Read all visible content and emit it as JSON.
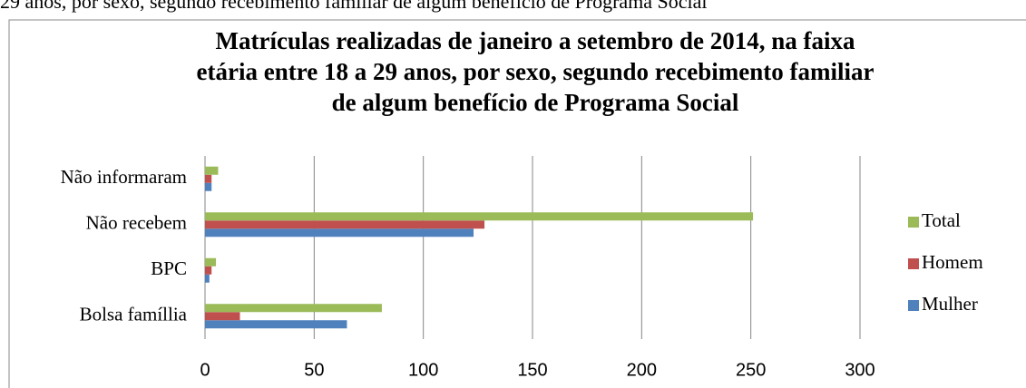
{
  "caption": "29 anos, por sexo, segundo recebimento familiar de algum benefício de Programa Social",
  "chart_data": {
    "type": "hbar",
    "title": [
      "Matrículas realizadas de janeiro a setembro de 2014, na faixa",
      "etária entre 18 a 29 anos, por sexo, segundo recebimento familiar",
      "de algum benefício de Programa Social"
    ],
    "categories": [
      "Bolsa famíllia",
      "BPC",
      "Não recebem",
      "Não informaram"
    ],
    "series": [
      {
        "name": "Mulher",
        "color": "#4f81bd",
        "values": [
          65,
          2,
          123,
          3
        ]
      },
      {
        "name": "Homem",
        "color": "#c0504d",
        "values": [
          16,
          3,
          128,
          3
        ]
      },
      {
        "name": "Total",
        "color": "#9bbb59",
        "values": [
          81,
          5,
          251,
          6
        ]
      }
    ],
    "xlim": [
      0,
      300
    ],
    "xticks": [
      0,
      50,
      100,
      150,
      200,
      250,
      300
    ],
    "grid": true,
    "legend": "right"
  }
}
